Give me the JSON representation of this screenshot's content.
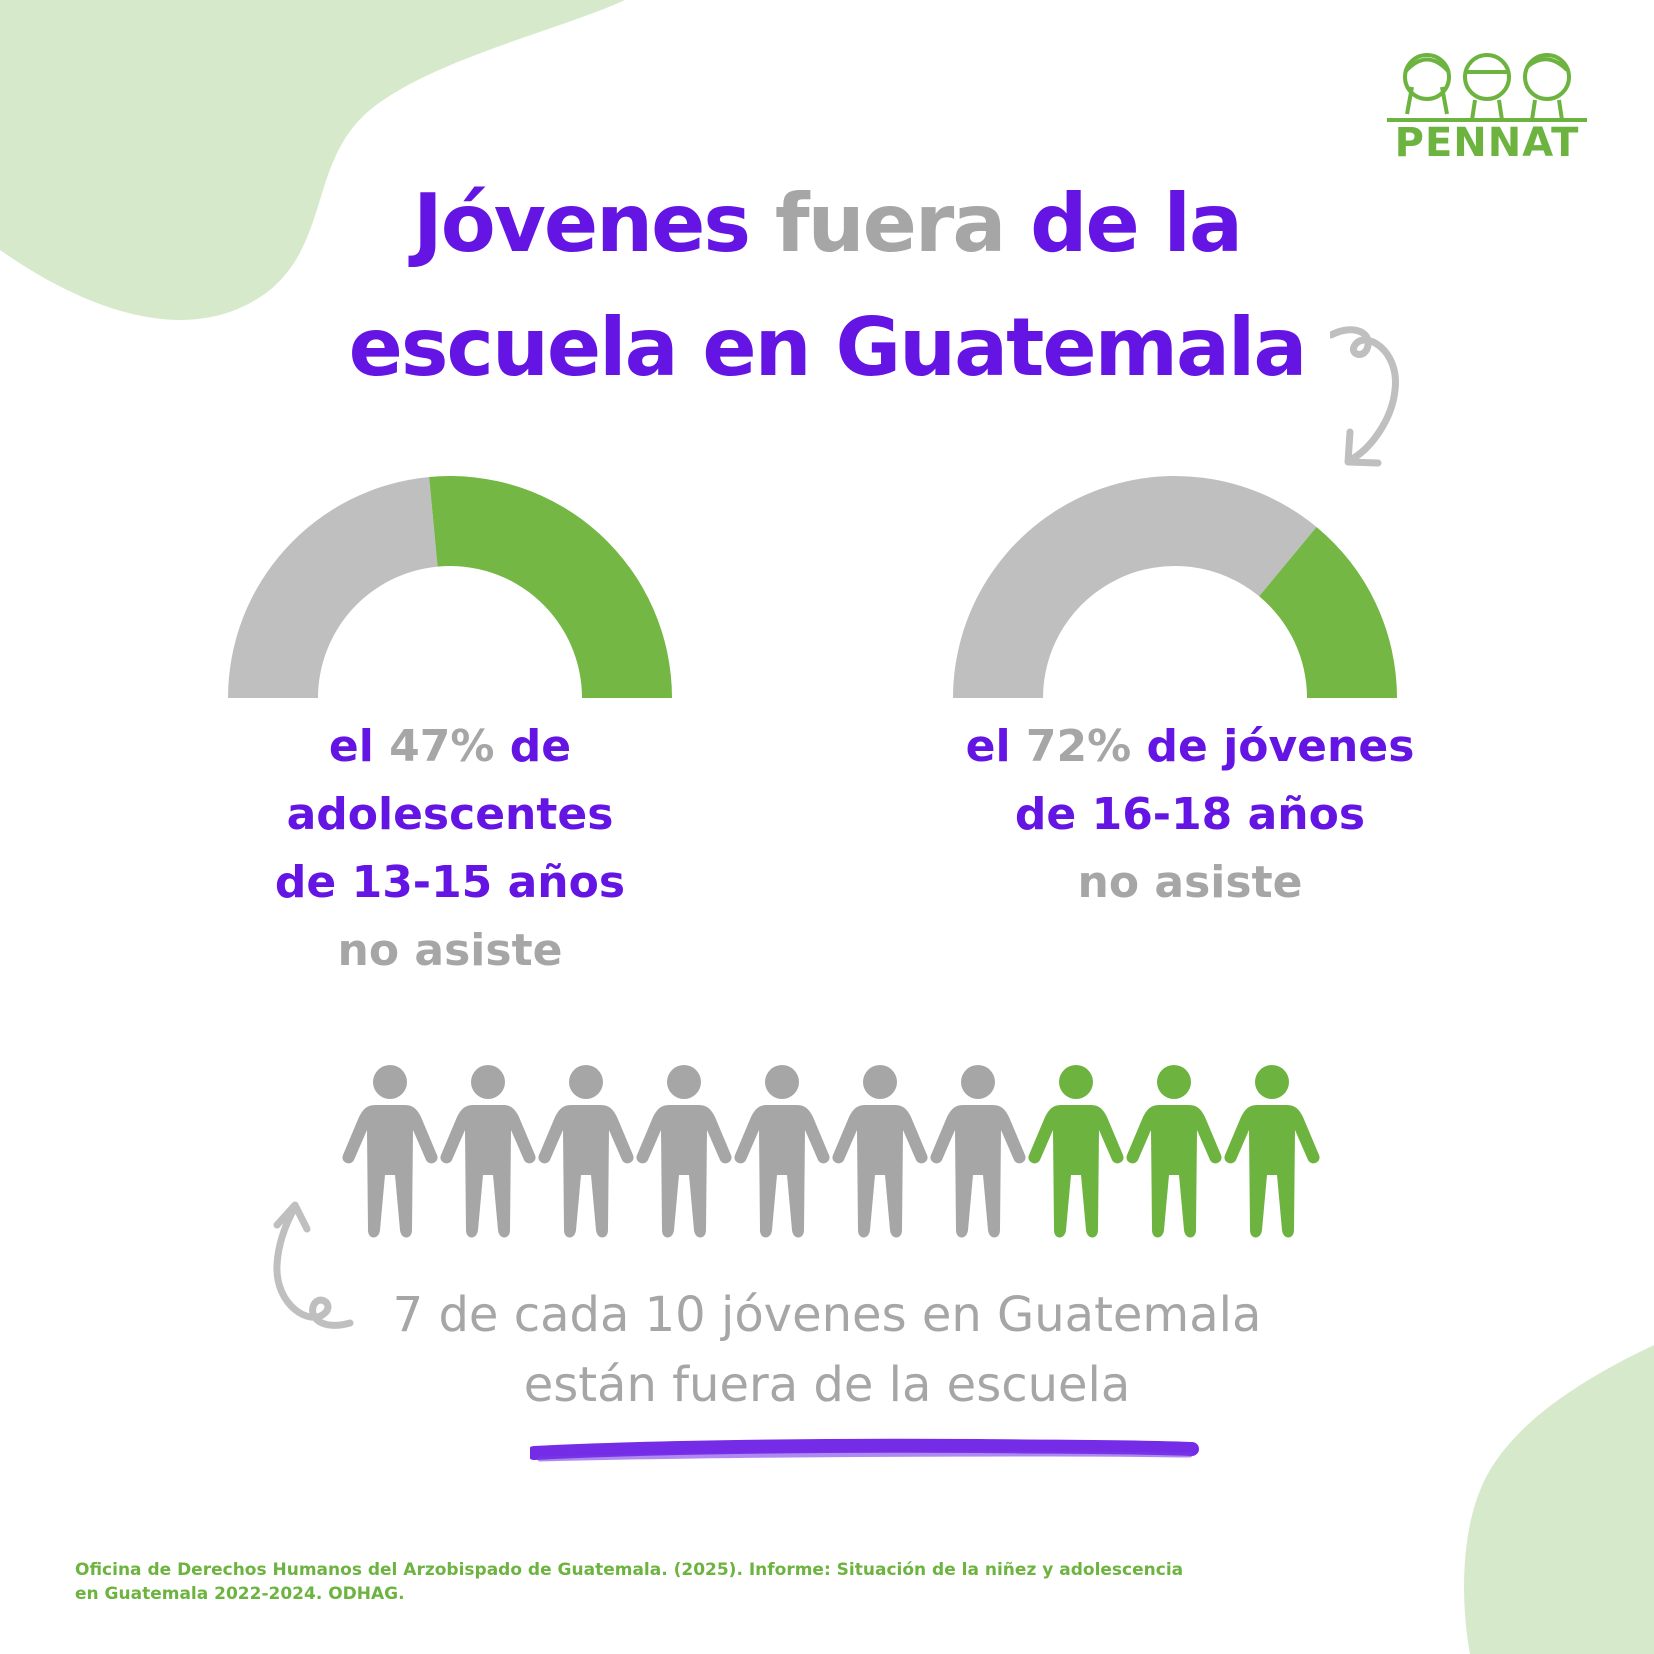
{
  "logo": {
    "text": "PENNAT",
    "icon": "three-children-faces-icon"
  },
  "title": {
    "part1": "Jóvenes",
    "part2": "fuera",
    "part3": "de la",
    "line2": "escuela en Guatemala"
  },
  "stat_left": {
    "prefix": "el",
    "pct": "47%",
    "suffix": "de",
    "line2": "adolescentes",
    "line3": "de 13-15 años",
    "line4": "no asiste"
  },
  "stat_right": {
    "prefix": "el",
    "pct": "72%",
    "suffix": "de jóvenes",
    "line2": "de 16-18 años",
    "line3": "no asiste"
  },
  "caption": {
    "line1": "7 de cada 10 jóvenes en Guatemala",
    "line2": "están fuera de la escuela"
  },
  "source": {
    "line1": "Oficina de Derechos Humanos del Arzobispado de Guatemala. (2025). Informe: Situación de la niñez y adolescencia",
    "line2": "en Guatemala 2022-2024. ODHAG."
  },
  "colors": {
    "purple": "#6515e3",
    "gray": "#a6a6a6",
    "gauge_gray": "#bfbfbf",
    "green": "#74b744",
    "person_green": "#6db33f",
    "blob": "#d6eacb"
  },
  "chart_data": [
    {
      "type": "gauge",
      "value": 47,
      "max": 100,
      "label": "el 47% de adolescentes de 13-15 años no asiste"
    },
    {
      "type": "gauge",
      "value": 72,
      "max": 100,
      "label": "el 72% de jóvenes de 16-18 años no asiste"
    },
    {
      "type": "pictogram",
      "total": 10,
      "highlighted": 3,
      "unhighlighted": 7,
      "label": "7 de cada 10 jóvenes en Guatemala están fuera de la escuela"
    }
  ]
}
